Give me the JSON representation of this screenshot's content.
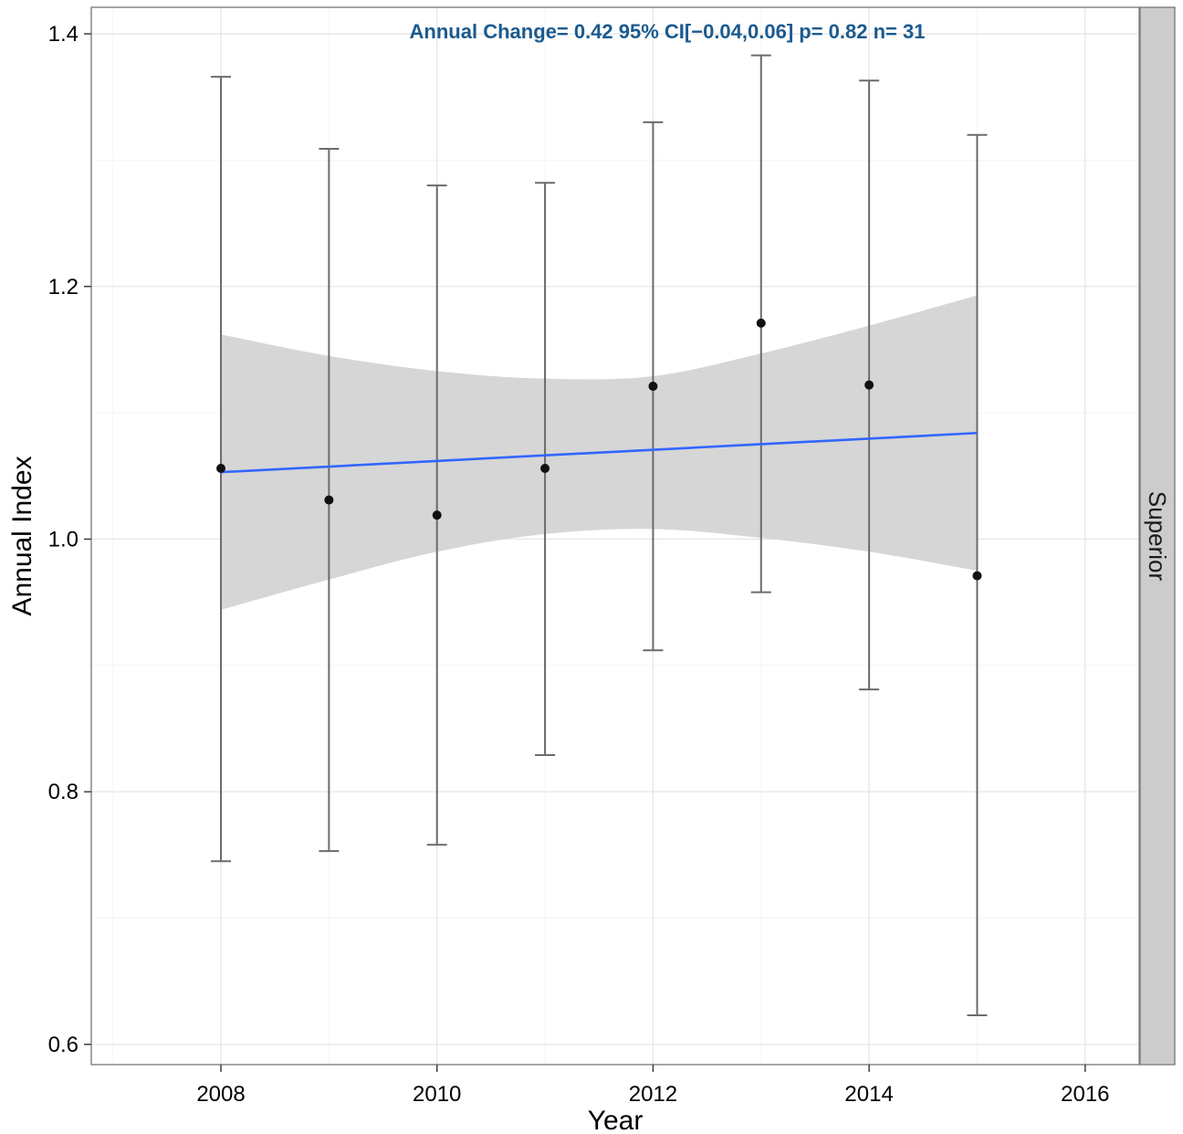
{
  "chart_data": {
    "type": "scatter",
    "title": "",
    "annotation": "Annual Change= 0.42  95% CI[−0.04,0.06]  p= 0.82  n= 31",
    "annotation_color": "#1a5a8f",
    "xlabel": "Year",
    "ylabel": "Annual Index",
    "facet_label": "Superior",
    "xlim": [
      2006.8,
      2016.5
    ],
    "ylim": [
      0.584,
      1.421
    ],
    "x_ticks": [
      2008,
      2010,
      2012,
      2014,
      2016
    ],
    "y_ticks": [
      0.6,
      0.8,
      1.0,
      1.2,
      1.4
    ],
    "y_tick_labels": [
      "0.6",
      "0.8",
      "1.0",
      "1.2",
      "1.4"
    ],
    "grid": true,
    "points": [
      {
        "x": 2008,
        "y": 1.056,
        "lower": 0.745,
        "upper": 1.366
      },
      {
        "x": 2009,
        "y": 1.031,
        "lower": 0.753,
        "upper": 1.309
      },
      {
        "x": 2010,
        "y": 1.019,
        "lower": 0.758,
        "upper": 1.28
      },
      {
        "x": 2011,
        "y": 1.056,
        "lower": 0.829,
        "upper": 1.282
      },
      {
        "x": 2012,
        "y": 1.121,
        "lower": 0.912,
        "upper": 1.33
      },
      {
        "x": 2013,
        "y": 1.171,
        "lower": 0.958,
        "upper": 1.383
      },
      {
        "x": 2014,
        "y": 1.122,
        "lower": 0.881,
        "upper": 1.363
      },
      {
        "x": 2015,
        "y": 0.971,
        "lower": 0.623,
        "upper": 1.32
      }
    ],
    "trend": {
      "x": [
        2008,
        2015
      ],
      "y": [
        1.053,
        1.084
      ],
      "color": "#3366ff"
    },
    "confidence_band": {
      "x": [
        2008,
        2009,
        2010,
        2011,
        2012,
        2013,
        2014,
        2015
      ],
      "lower": [
        0.944,
        0.968,
        0.99,
        1.004,
        1.008,
        1.001,
        0.99,
        0.975
      ],
      "upper": [
        1.162,
        1.145,
        1.133,
        1.127,
        1.129,
        1.147,
        1.169,
        1.193
      ],
      "color": "#d6d6d6"
    }
  }
}
